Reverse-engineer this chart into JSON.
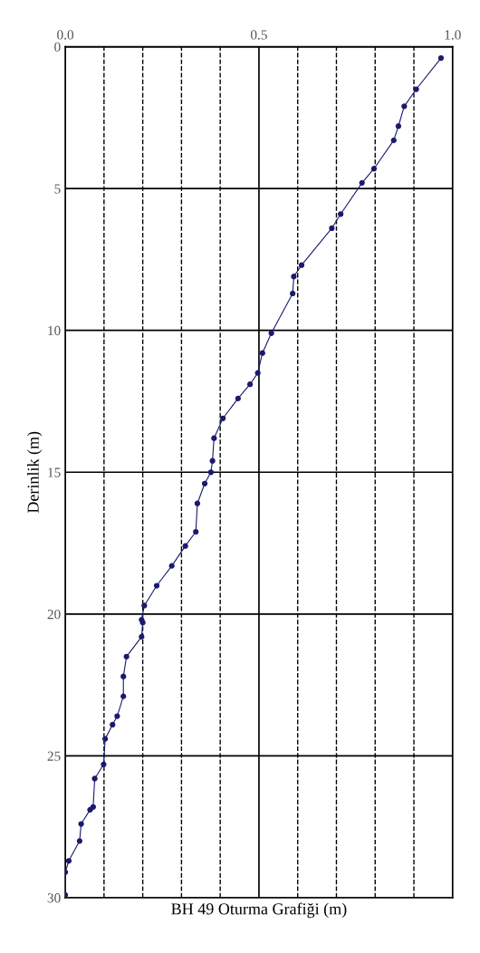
{
  "chart_data": {
    "type": "line",
    "xlabel": "BH 49 Oturma Grafiği (m)",
    "ylabel": "Derinlik (m)",
    "series": [
      {
        "color": "#1a1a6e",
        "x": [
          0.97,
          0.906,
          0.875,
          0.86,
          0.848,
          0.797,
          0.766,
          0.711,
          0.688,
          0.61,
          0.59,
          0.587,
          0.532,
          0.509,
          0.497,
          0.477,
          0.446,
          0.407,
          0.384,
          0.38,
          0.376,
          0.36,
          0.341,
          0.337,
          0.31,
          0.275,
          0.236,
          0.204,
          0.197,
          0.2,
          0.197,
          0.158,
          0.15,
          0.15,
          0.134,
          0.122,
          0.103,
          0.099,
          0.076,
          0.072,
          0.064,
          0.041,
          0.037,
          0.009,
          0.0,
          0.0
        ],
        "values": [
          0.4,
          1.5,
          2.1,
          2.8,
          3.3,
          4.3,
          4.8,
          5.9,
          6.4,
          7.7,
          8.1,
          8.7,
          10.1,
          10.8,
          11.5,
          11.9,
          12.4,
          13.1,
          13.8,
          14.6,
          15.0,
          15.4,
          16.1,
          17.1,
          17.6,
          18.3,
          19.0,
          19.7,
          20.2,
          20.3,
          20.8,
          21.5,
          22.2,
          22.9,
          23.6,
          23.9,
          24.4,
          25.3,
          25.8,
          26.8,
          26.9,
          27.4,
          28.0,
          28.7,
          29.1,
          29.9
        ]
      }
    ],
    "xlim": [
      0,
      1.0
    ],
    "xticks": [
      {
        "value": 0,
        "label": "0.0"
      },
      {
        "value": 0.5,
        "label": "0.5"
      },
      {
        "value": 1.0,
        "label": "1.0"
      }
    ],
    "ylim": [
      30,
      0
    ],
    "yticks": [
      0,
      5,
      10,
      15,
      20,
      25,
      30
    ],
    "grid": true,
    "marker": "circle",
    "line_style": "solid",
    "ref_lines": [
      {
        "axis": "x",
        "value": 0.1,
        "line_style": "dashed",
        "color": "#000000"
      },
      {
        "axis": "x",
        "value": 0.2,
        "line_style": "dashed",
        "color": "#000000"
      },
      {
        "axis": "x",
        "value": 0.3,
        "line_style": "dashed",
        "color": "#000000"
      },
      {
        "axis": "x",
        "value": 0.4,
        "line_style": "dashed",
        "color": "#000000"
      },
      {
        "axis": "x",
        "value": 0.6,
        "line_style": "dashed",
        "color": "#000000"
      },
      {
        "axis": "x",
        "value": 0.7,
        "line_style": "dashed",
        "color": "#000000"
      },
      {
        "axis": "x",
        "value": 0.8,
        "line_style": "dashed",
        "color": "#000000"
      },
      {
        "axis": "x",
        "value": 0.9,
        "line_style": "dashed",
        "color": "#000000"
      }
    ]
  }
}
